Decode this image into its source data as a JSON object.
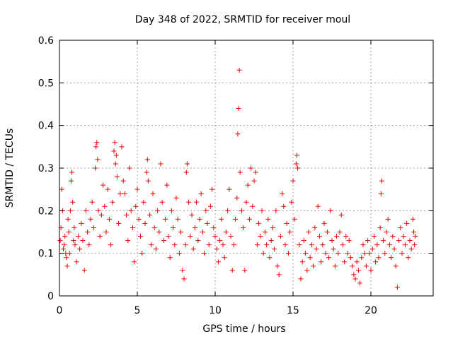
{
  "chart_data": {
    "type": "scatter",
    "title": "Day 348 of 2022, SRMTID for receiver moul",
    "xlabel": "GPS time / hours",
    "ylabel": "SRMTID / TECUs",
    "xlim": [
      0,
      24
    ],
    "ylim": [
      0,
      0.6
    ],
    "xticks": [
      0,
      5,
      10,
      15,
      20
    ],
    "yticks": [
      0,
      0.1,
      0.2,
      0.3,
      0.4,
      0.5,
      0.6
    ],
    "xtick_labels": [
      "0",
      "5",
      "10",
      "15",
      "20"
    ],
    "ytick_labels": [
      "0",
      "0.1",
      "0.2",
      "0.3",
      "0.4",
      "0.5",
      "0.6"
    ],
    "grid": true,
    "marker": "plus",
    "color": "#ee0000",
    "series": [
      {
        "name": "moul",
        "points": [
          [
            0.05,
            0.13
          ],
          [
            0.1,
            0.16
          ],
          [
            0.15,
            0.25
          ],
          [
            0.2,
            0.2
          ],
          [
            0.25,
            0.11
          ],
          [
            0.3,
            0.12
          ],
          [
            0.35,
            0.14
          ],
          [
            0.4,
            0.1
          ],
          [
            0.45,
            0.09
          ],
          [
            0.5,
            0.07
          ],
          [
            0.55,
            0.18
          ],
          [
            0.6,
            0.15
          ],
          [
            0.65,
            0.1
          ],
          [
            0.7,
            0.2
          ],
          [
            0.75,
            0.27
          ],
          [
            0.8,
            0.29
          ],
          [
            0.85,
            0.22
          ],
          [
            0.9,
            0.13
          ],
          [
            0.95,
            0.16
          ],
          [
            1.0,
            0.12
          ],
          [
            1.1,
            0.08
          ],
          [
            1.2,
            0.14
          ],
          [
            1.3,
            0.11
          ],
          [
            1.4,
            0.17
          ],
          [
            1.5,
            0.13
          ],
          [
            1.6,
            0.06
          ],
          [
            1.7,
            0.2
          ],
          [
            1.8,
            0.15
          ],
          [
            1.9,
            0.12
          ],
          [
            2.0,
            0.18
          ],
          [
            2.1,
            0.22
          ],
          [
            2.2,
            0.16
          ],
          [
            2.3,
            0.3
          ],
          [
            2.35,
            0.35
          ],
          [
            2.4,
            0.36
          ],
          [
            2.45,
            0.32
          ],
          [
            2.5,
            0.2
          ],
          [
            2.6,
            0.14
          ],
          [
            2.7,
            0.19
          ],
          [
            2.8,
            0.26
          ],
          [
            2.9,
            0.21
          ],
          [
            3.0,
            0.15
          ],
          [
            3.1,
            0.25
          ],
          [
            3.2,
            0.18
          ],
          [
            3.3,
            0.12
          ],
          [
            3.4,
            0.22
          ],
          [
            3.5,
            0.34
          ],
          [
            3.55,
            0.36
          ],
          [
            3.6,
            0.31
          ],
          [
            3.65,
            0.33
          ],
          [
            3.7,
            0.28
          ],
          [
            3.8,
            0.17
          ],
          [
            3.9,
            0.24
          ],
          [
            4.0,
            0.35
          ],
          [
            4.1,
            0.27
          ],
          [
            4.2,
            0.24
          ],
          [
            4.3,
            0.19
          ],
          [
            4.4,
            0.13
          ],
          [
            4.5,
            0.3
          ],
          [
            4.6,
            0.2
          ],
          [
            4.7,
            0.16
          ],
          [
            4.8,
            0.08
          ],
          [
            4.9,
            0.21
          ],
          [
            5.0,
            0.25
          ],
          [
            5.1,
            0.18
          ],
          [
            5.2,
            0.14
          ],
          [
            5.3,
            0.1
          ],
          [
            5.4,
            0.22
          ],
          [
            5.5,
            0.17
          ],
          [
            5.6,
            0.29
          ],
          [
            5.65,
            0.32
          ],
          [
            5.7,
            0.27
          ],
          [
            5.8,
            0.19
          ],
          [
            5.9,
            0.12
          ],
          [
            6.0,
            0.24
          ],
          [
            6.1,
            0.16
          ],
          [
            6.2,
            0.11
          ],
          [
            6.3,
            0.2
          ],
          [
            6.4,
            0.15
          ],
          [
            6.5,
            0.31
          ],
          [
            6.6,
            0.22
          ],
          [
            6.7,
            0.13
          ],
          [
            6.8,
            0.18
          ],
          [
            6.9,
            0.26
          ],
          [
            7.0,
            0.14
          ],
          [
            7.1,
            0.09
          ],
          [
            7.2,
            0.2
          ],
          [
            7.3,
            0.16
          ],
          [
            7.4,
            0.12
          ],
          [
            7.5,
            0.23
          ],
          [
            7.6,
            0.18
          ],
          [
            7.7,
            0.1
          ],
          [
            7.8,
            0.15
          ],
          [
            7.9,
            0.06
          ],
          [
            8.0,
            0.04
          ],
          [
            8.1,
            0.12
          ],
          [
            8.15,
            0.29
          ],
          [
            8.2,
            0.31
          ],
          [
            8.3,
            0.22
          ],
          [
            8.4,
            0.14
          ],
          [
            8.5,
            0.19
          ],
          [
            8.6,
            0.11
          ],
          [
            8.7,
            0.16
          ],
          [
            8.8,
            0.22
          ],
          [
            8.9,
            0.13
          ],
          [
            9.0,
            0.18
          ],
          [
            9.1,
            0.24
          ],
          [
            9.2,
            0.15
          ],
          [
            9.3,
            0.1
          ],
          [
            9.4,
            0.2
          ],
          [
            9.5,
            0.17
          ],
          [
            9.6,
            0.12
          ],
          [
            9.7,
            0.21
          ],
          [
            9.8,
            0.25
          ],
          [
            9.9,
            0.16
          ],
          [
            10.0,
            0.14
          ],
          [
            10.1,
            0.11
          ],
          [
            10.2,
            0.08
          ],
          [
            10.3,
            0.13
          ],
          [
            10.4,
            0.18
          ],
          [
            10.5,
            0.12
          ],
          [
            10.6,
            0.09
          ],
          [
            10.7,
            0.15
          ],
          [
            10.8,
            0.2
          ],
          [
            10.9,
            0.25
          ],
          [
            11.0,
            0.14
          ],
          [
            11.1,
            0.06
          ],
          [
            11.2,
            0.12
          ],
          [
            11.3,
            0.18
          ],
          [
            11.4,
            0.23
          ],
          [
            11.45,
            0.38
          ],
          [
            11.5,
            0.44
          ],
          [
            11.55,
            0.53
          ],
          [
            11.6,
            0.29
          ],
          [
            11.7,
            0.2
          ],
          [
            11.8,
            0.16
          ],
          [
            11.9,
            0.06
          ],
          [
            12.0,
            0.22
          ],
          [
            12.1,
            0.26
          ],
          [
            12.2,
            0.18
          ],
          [
            12.3,
            0.3
          ],
          [
            12.4,
            0.21
          ],
          [
            12.5,
            0.27
          ],
          [
            12.6,
            0.29
          ],
          [
            12.7,
            0.12
          ],
          [
            12.8,
            0.17
          ],
          [
            12.9,
            0.14
          ],
          [
            13.0,
            0.2
          ],
          [
            13.1,
            0.1
          ],
          [
            13.2,
            0.15
          ],
          [
            13.3,
            0.12
          ],
          [
            13.4,
            0.18
          ],
          [
            13.5,
            0.09
          ],
          [
            13.6,
            0.13
          ],
          [
            13.7,
            0.16
          ],
          [
            13.8,
            0.11
          ],
          [
            13.9,
            0.2
          ],
          [
            14.0,
            0.07
          ],
          [
            14.1,
            0.05
          ],
          [
            14.2,
            0.14
          ],
          [
            14.3,
            0.24
          ],
          [
            14.4,
            0.21
          ],
          [
            14.5,
            0.12
          ],
          [
            14.6,
            0.17
          ],
          [
            14.7,
            0.1
          ],
          [
            14.8,
            0.15
          ],
          [
            14.9,
            0.22
          ],
          [
            15.0,
            0.27
          ],
          [
            15.1,
            0.18
          ],
          [
            15.2,
            0.31
          ],
          [
            15.25,
            0.33
          ],
          [
            15.3,
            0.3
          ],
          [
            15.4,
            0.12
          ],
          [
            15.5,
            0.04
          ],
          [
            15.6,
            0.08
          ],
          [
            15.7,
            0.13
          ],
          [
            15.8,
            0.1
          ],
          [
            15.9,
            0.06
          ],
          [
            16.0,
            0.15
          ],
          [
            16.1,
            0.09
          ],
          [
            16.2,
            0.12
          ],
          [
            16.3,
            0.07
          ],
          [
            16.4,
            0.16
          ],
          [
            16.5,
            0.11
          ],
          [
            16.6,
            0.21
          ],
          [
            16.7,
            0.14
          ],
          [
            16.8,
            0.08
          ],
          [
            16.9,
            0.12
          ],
          [
            17.0,
            0.17
          ],
          [
            17.1,
            0.1
          ],
          [
            17.2,
            0.15
          ],
          [
            17.3,
            0.09
          ],
          [
            17.4,
            0.2
          ],
          [
            17.5,
            0.13
          ],
          [
            17.6,
            0.11
          ],
          [
            17.7,
            0.07
          ],
          [
            17.8,
            0.14
          ],
          [
            17.9,
            0.1
          ],
          [
            18.0,
            0.15
          ],
          [
            18.1,
            0.19
          ],
          [
            18.2,
            0.12
          ],
          [
            18.3,
            0.08
          ],
          [
            18.4,
            0.14
          ],
          [
            18.5,
            0.1
          ],
          [
            18.6,
            0.13
          ],
          [
            18.7,
            0.09
          ],
          [
            18.8,
            0.07
          ],
          [
            18.9,
            0.05
          ],
          [
            19.0,
            0.04
          ],
          [
            19.1,
            0.08
          ],
          [
            19.2,
            0.06
          ],
          [
            19.3,
            0.03
          ],
          [
            19.4,
            0.09
          ],
          [
            19.5,
            0.12
          ],
          [
            19.6,
            0.1
          ],
          [
            19.7,
            0.07
          ],
          [
            19.8,
            0.13
          ],
          [
            19.9,
            0.1
          ],
          [
            20.0,
            0.06
          ],
          [
            20.1,
            0.11
          ],
          [
            20.2,
            0.14
          ],
          [
            20.3,
            0.08
          ],
          [
            20.4,
            0.12
          ],
          [
            20.5,
            0.09
          ],
          [
            20.6,
            0.16
          ],
          [
            20.65,
            0.24
          ],
          [
            20.7,
            0.27
          ],
          [
            20.8,
            0.13
          ],
          [
            20.9,
            0.1
          ],
          [
            21.0,
            0.15
          ],
          [
            21.1,
            0.18
          ],
          [
            21.2,
            0.12
          ],
          [
            21.3,
            0.09
          ],
          [
            21.4,
            0.14
          ],
          [
            21.5,
            0.11
          ],
          [
            21.6,
            0.07
          ],
          [
            21.7,
            0.02
          ],
          [
            21.8,
            0.13
          ],
          [
            21.9,
            0.16
          ],
          [
            22.0,
            0.1
          ],
          [
            22.1,
            0.14
          ],
          [
            22.2,
            0.12
          ],
          [
            22.3,
            0.17
          ],
          [
            22.4,
            0.09
          ],
          [
            22.5,
            0.13
          ],
          [
            22.6,
            0.11
          ],
          [
            22.7,
            0.18
          ],
          [
            22.75,
            0.15
          ],
          [
            22.8,
            0.12
          ],
          [
            22.85,
            0.14
          ]
        ]
      }
    ]
  }
}
